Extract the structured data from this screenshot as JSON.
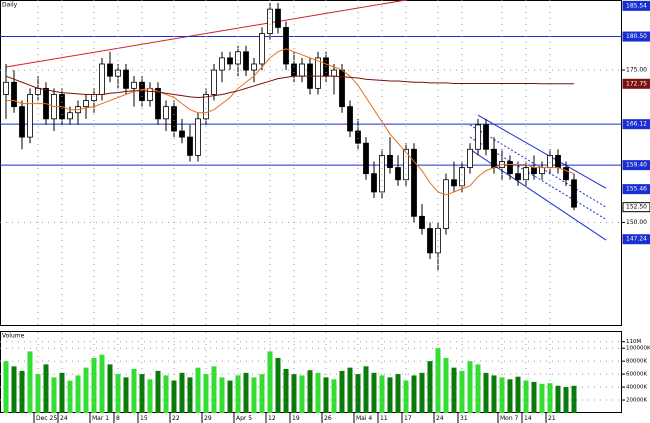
{
  "chart_data": [
    {
      "type": "candlestick",
      "title": "Daily",
      "ylim": [
        133,
        186.5
      ],
      "yticks": [
        {
          "value": 175,
          "label": "175.00"
        },
        {
          "value": 150,
          "label": "150.00"
        }
      ],
      "grid": true,
      "up_color": "#ffffff",
      "down_color": "#000000",
      "open": [
        171,
        173,
        169,
        164,
        171,
        172,
        167,
        171,
        167,
        168,
        169,
        170,
        171,
        176,
        174,
        175,
        172,
        173,
        170,
        172,
        167,
        169,
        165,
        164,
        161,
        167,
        171,
        175,
        177,
        176,
        178,
        175,
        176,
        181,
        185,
        182,
        176,
        174,
        176,
        172,
        177,
        174,
        175,
        169,
        165,
        163,
        158,
        155,
        161,
        159,
        157,
        162,
        151,
        149,
        145,
        149,
        157,
        156,
        159,
        162,
        166,
        162,
        159,
        160,
        158,
        157,
        159,
        158,
        159,
        161,
        159,
        157
      ],
      "high": [
        176,
        175,
        170,
        172,
        174,
        173,
        172,
        172,
        169,
        170,
        171,
        172,
        177,
        178,
        176,
        176,
        174,
        174,
        173,
        173,
        170,
        170,
        167,
        166,
        168,
        172,
        176,
        178,
        178,
        179,
        179,
        177,
        182,
        186,
        186,
        183,
        178,
        177,
        177,
        178,
        178,
        176,
        176,
        170,
        167,
        164,
        160,
        162,
        164,
        161,
        163,
        163,
        153,
        150,
        150,
        158,
        160,
        160,
        163,
        167,
        167,
        164,
        162,
        161,
        160,
        160,
        161,
        160,
        162,
        162,
        160,
        158
      ],
      "low": [
        167,
        168,
        162,
        163,
        170,
        166,
        165,
        166,
        166,
        166,
        167,
        168,
        170,
        173,
        172,
        171,
        169,
        169,
        169,
        166,
        165,
        164,
        163,
        160,
        160,
        166,
        170,
        173,
        175,
        174,
        174,
        173,
        175,
        180,
        181,
        175,
        173,
        173,
        171,
        171,
        173,
        171,
        168,
        164,
        162,
        157,
        154,
        154,
        158,
        156,
        156,
        150,
        148,
        144,
        142,
        148,
        155,
        155,
        158,
        161,
        161,
        158,
        157,
        157,
        156,
        156,
        157,
        157,
        158,
        158,
        156,
        152
      ],
      "close": [
        173,
        169,
        164,
        171,
        172,
        167,
        171,
        167,
        168,
        169,
        170,
        171,
        176,
        174,
        175,
        172,
        173,
        170,
        172,
        167,
        169,
        165,
        164,
        161,
        167,
        171,
        175,
        177,
        176,
        178,
        175,
        176,
        181,
        185,
        182,
        176,
        174,
        176,
        172,
        177,
        174,
        175,
        169,
        165,
        163,
        158,
        155,
        161,
        159,
        157,
        162,
        151,
        149,
        145,
        149,
        157,
        156,
        159,
        162,
        166,
        162,
        159,
        160,
        158,
        157,
        159,
        158,
        159,
        161,
        159,
        157,
        152.5
      ],
      "overlays": [
        {
          "color": "#e8701a",
          "values": [
            170,
            170,
            169.5,
            169.5,
            169.5,
            169.5,
            169,
            169,
            168.5,
            168.5,
            168.8,
            169,
            169.5,
            170,
            170.5,
            171,
            171.5,
            171.8,
            172,
            171.5,
            171,
            170.5,
            169.5,
            168.5,
            168,
            168,
            168.5,
            169.5,
            170.5,
            172,
            173,
            174,
            175.5,
            177,
            178,
            178.5,
            178,
            177.5,
            177,
            176.5,
            176,
            175.5,
            175,
            174,
            172.5,
            170.5,
            168.5,
            166.5,
            164.5,
            163,
            161.5,
            160,
            158.5,
            156.5,
            155,
            154.5,
            155,
            155.5,
            156,
            157.5,
            158.5,
            159,
            159.5,
            159.5,
            159.5,
            159.5,
            159,
            159,
            159,
            159,
            158.5,
            158
          ]
        },
        {
          "color": "#7a1010",
          "values": [
            174,
            173.5,
            173,
            172.5,
            172,
            171.8,
            171.5,
            171.3,
            171.2,
            171.1,
            171,
            171,
            171,
            171.2,
            171.3,
            171.5,
            171.6,
            171.6,
            171.5,
            171.4,
            171.2,
            171,
            170.8,
            170.6,
            170.5,
            170.6,
            170.8,
            171,
            171.3,
            171.6,
            172,
            172.4,
            172.8,
            173.2,
            173.6,
            173.8,
            174,
            174,
            174,
            174,
            174,
            174,
            173.9,
            173.8,
            173.7,
            173.5,
            173.4,
            173.3,
            173.2,
            173.2,
            173.1,
            173,
            173,
            172.9,
            172.9,
            172.9,
            172.8,
            172.8,
            172.8,
            172.8,
            172.8,
            172.8,
            172.8,
            172.8,
            172.8,
            172.8,
            172.8,
            172.75,
            172.75,
            172.75,
            172.75,
            172.75
          ]
        }
      ],
      "trendlines": [
        {
          "color": "#d42020",
          "dash": false,
          "x": [
            0,
            50
          ],
          "values": [
            175.5,
            186.5
          ]
        },
        {
          "color": "#1a2fd0",
          "dash": false,
          "x": [
            59,
            75
          ],
          "values": [
            167.6,
            155.6
          ]
        },
        {
          "color": "#1a2fd0",
          "dash": true,
          "x": [
            58,
            75
          ],
          "values": [
            166,
            152.5
          ]
        },
        {
          "color": "#1a2fd0",
          "dash": true,
          "x": [
            58,
            75
          ],
          "values": [
            164,
            150.5
          ]
        },
        {
          "color": "#1a2fd0",
          "dash": false,
          "x": [
            58,
            75
          ],
          "values": [
            162,
            147.1
          ]
        }
      ],
      "price_tags": [
        {
          "value": 185.54,
          "label": "185.54",
          "color": "#1a2fd0",
          "text_color": "#ffffff",
          "line": false
        },
        {
          "value": 180.5,
          "label": "180.50",
          "color": "#1a2fd0",
          "text_color": "#ffffff",
          "line": true
        },
        {
          "value": 172.75,
          "label": "172.75",
          "color": "#7a1010",
          "text_color": "#ffffff",
          "line": false
        },
        {
          "value": 166.12,
          "label": "166.12",
          "color": "#1a2fd0",
          "text_color": "#ffffff",
          "line": true
        },
        {
          "value": 159.4,
          "label": "159.40",
          "color": "#1a2fd0",
          "text_color": "#ffffff",
          "line": true
        },
        {
          "value": 155.46,
          "label": "155.46",
          "color": "#1a2fd0",
          "text_color": "#ffffff",
          "line": false
        },
        {
          "value": 152.5,
          "label": "152.50",
          "color": "#ffffff",
          "text_color": "#000000",
          "line": false
        },
        {
          "value": 147.24,
          "label": "147.24",
          "color": "#1a2fd0",
          "text_color": "#ffffff",
          "line": false
        }
      ]
    },
    {
      "type": "bar",
      "title": "Volume",
      "ylim": [
        0,
        125000
      ],
      "yticks": [
        {
          "value": 110000,
          "label": "110M"
        },
        {
          "value": 100000,
          "label": "100000K"
        },
        {
          "value": 80000,
          "label": "80000K"
        },
        {
          "value": 60000,
          "label": "60000K"
        },
        {
          "value": 40000,
          "label": "40000K"
        },
        {
          "value": 20000,
          "label": "20000K"
        }
      ],
      "grid": true,
      "up_color": "#33dd33",
      "down_color": "#0a7a0a",
      "categories": [
        null,
        null,
        null,
        null,
        "Dec 25",
        null,
        null,
        "24",
        null,
        null,
        null,
        "Mar 1",
        null,
        null,
        "8",
        null,
        null,
        "15",
        null,
        null,
        null,
        "22",
        null,
        null,
        null,
        "29",
        null,
        null,
        null,
        "Apr 5",
        null,
        null,
        null,
        "12",
        null,
        null,
        "19",
        null,
        null,
        null,
        "26",
        null,
        null,
        null,
        "Mai 4",
        null,
        null,
        "11",
        null,
        null,
        "17",
        null,
        null,
        null,
        "24",
        null,
        null,
        "31",
        null,
        null,
        null,
        null,
        "Mon 7",
        null,
        null,
        "14",
        null,
        null,
        "21",
        null,
        null,
        null
      ],
      "values": [
        80000,
        72000,
        65000,
        95000,
        60000,
        75000,
        55000,
        62000,
        50000,
        58000,
        70000,
        85000,
        90000,
        75000,
        60000,
        55000,
        68000,
        60000,
        52000,
        65000,
        58000,
        50000,
        62000,
        55000,
        70000,
        60000,
        72000,
        55000,
        50000,
        58000,
        62000,
        55000,
        60000,
        95000,
        85000,
        68000,
        60000,
        58000,
        66000,
        62000,
        55000,
        52000,
        65000,
        70000,
        60000,
        72000,
        62000,
        58000,
        55000,
        60000,
        50000,
        58000,
        62000,
        80000,
        100000,
        85000,
        70000,
        65000,
        80000,
        75000,
        62000,
        58000,
        55000,
        52000,
        56000,
        50000,
        48000,
        45000,
        46000,
        42000,
        40000,
        42000
      ]
    }
  ]
}
